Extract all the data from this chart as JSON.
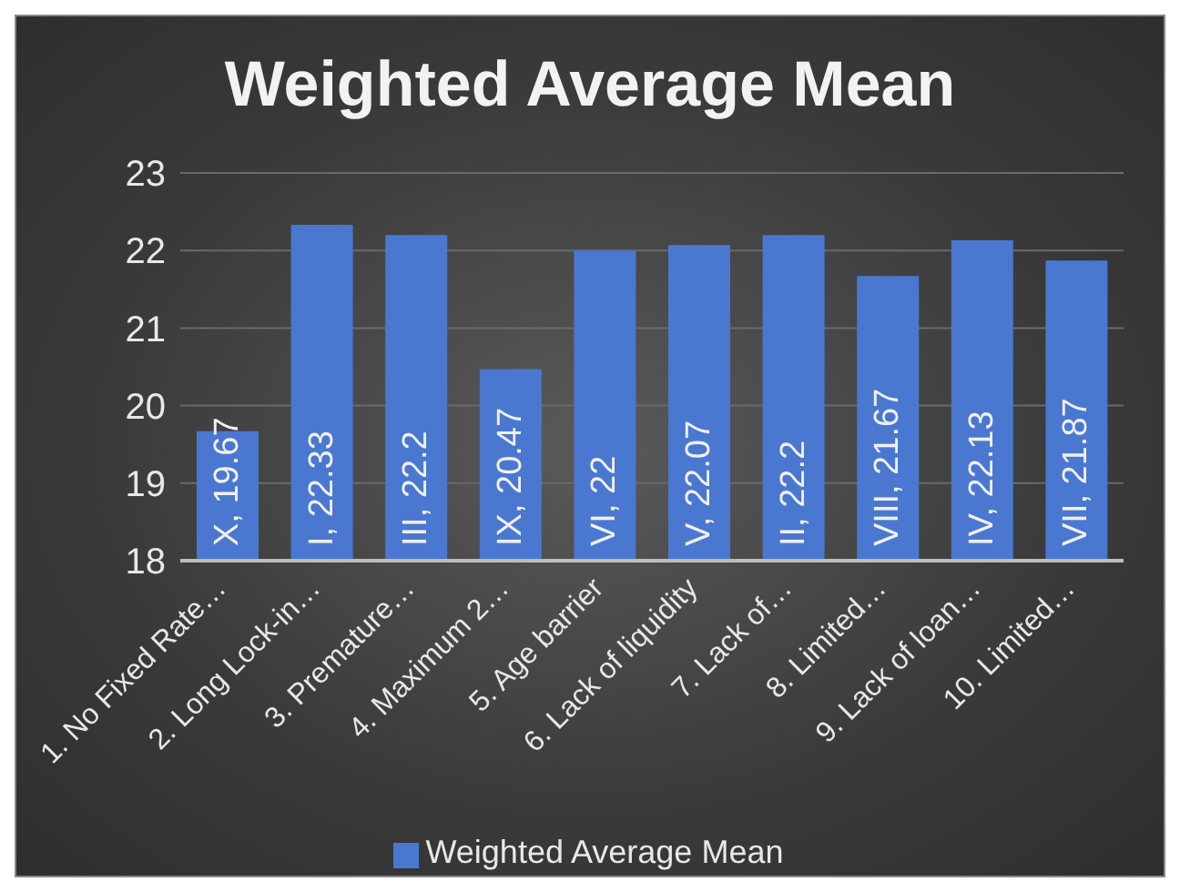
{
  "chart_data": {
    "type": "bar",
    "title": "Weighted Average Mean",
    "categories": [
      "1. No Fixed Rate…",
      "2. Long Lock-in…",
      "3. Premature…",
      "4. Maximum 2…",
      "5. Age barrier",
      "6. Lack of liquidity",
      "7. Lack of…",
      "8. Limited…",
      "9. Lack of loan…",
      "10. Limited…"
    ],
    "series": [
      {
        "name": "Weighted Average Mean",
        "color": "#4a78d0",
        "values": [
          19.67,
          22.33,
          22.2,
          20.47,
          22,
          22.07,
          22.2,
          21.67,
          22.13,
          21.87
        ],
        "value_labels": [
          "X, 19.67",
          "I, 22.33",
          "III, 22.2",
          "IX, 20.47",
          "VI, 22",
          "V, 22.07",
          "II, 22.2",
          "VIII, 21.67",
          "IV, 22.13",
          "VII, 21.87"
        ]
      }
    ],
    "ylim": [
      18,
      23
    ],
    "yticks": [
      18,
      19,
      20,
      21,
      22,
      23
    ],
    "grid": "y",
    "legend": "bottom"
  }
}
